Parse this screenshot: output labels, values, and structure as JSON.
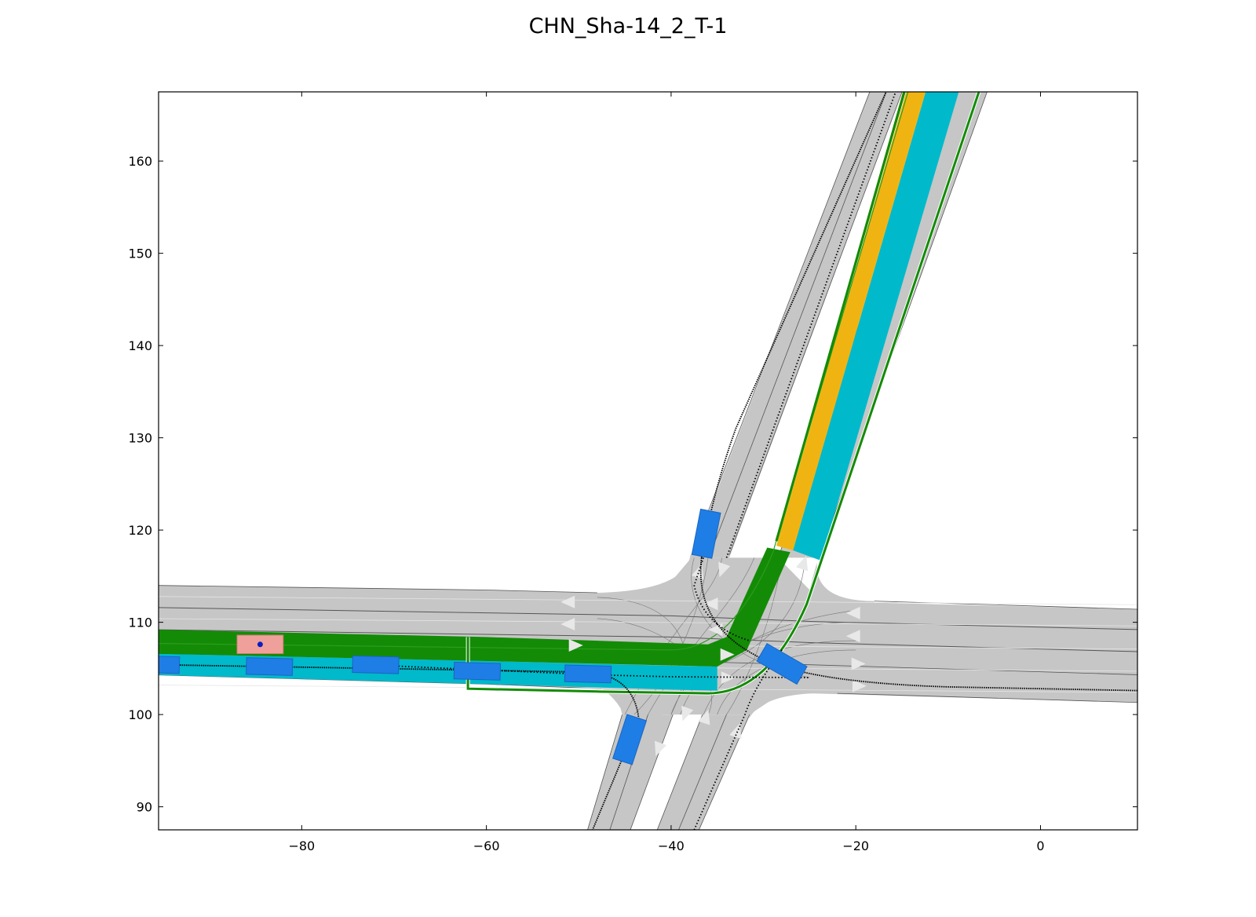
{
  "title": "CHN_Sha-14_2_T-1",
  "chart_data": {
    "type": "scatter",
    "xlim": [
      -95.5,
      10.5
    ],
    "ylim": [
      87.5,
      167.5
    ],
    "x_ticks": [
      -80,
      -60,
      -40,
      -20,
      0
    ],
    "y_ticks": [
      90,
      100,
      110,
      120,
      130,
      140,
      150,
      160
    ],
    "x_tick_labels": [
      "−80",
      "−60",
      "−40",
      "−20",
      "0"
    ],
    "y_tick_labels": [
      "90",
      "100",
      "110",
      "120",
      "130",
      "140",
      "150",
      "160"
    ],
    "colors": {
      "road": "#c6c6c6",
      "road_edge": "#555555",
      "ego_route": "#138b06",
      "goal_lanes": "#00b9cb",
      "orange_lane": "#f0b412",
      "obstacle": "#1f7de6",
      "ego_vehicle": "#f0a09a",
      "ego_center": "#0b1dc2",
      "trajectory": "#000000",
      "arrow": "#e8e8e8"
    },
    "ego_vehicle": {
      "center": [
        -84.5,
        107.6
      ],
      "length": 5.0,
      "width": 2.0
    },
    "obstacles": [
      {
        "center": [
          -95,
          105.4
        ],
        "length": 3.5,
        "width": 1.8,
        "angle": -1.5
      },
      {
        "center": [
          -83.5,
          105.2
        ],
        "length": 5.0,
        "width": 1.8,
        "angle": -1.5
      },
      {
        "center": [
          -72,
          105.4
        ],
        "length": 5.0,
        "width": 1.8,
        "angle": -1.5
      },
      {
        "center": [
          -61,
          104.7
        ],
        "length": 5.0,
        "width": 1.8,
        "angle": -1.5
      },
      {
        "center": [
          -49,
          104.4
        ],
        "length": 5.0,
        "width": 1.8,
        "angle": -1.5
      },
      {
        "center": [
          -36.2,
          119.6
        ],
        "length": 5.0,
        "width": 2.2,
        "angle": 79
      },
      {
        "center": [
          -44.5,
          97.3
        ],
        "length": 5.0,
        "width": 2.2,
        "angle": 72
      },
      {
        "center": [
          -28,
          105.5
        ],
        "length": 5.0,
        "width": 2.2,
        "angle": -30
      }
    ]
  }
}
